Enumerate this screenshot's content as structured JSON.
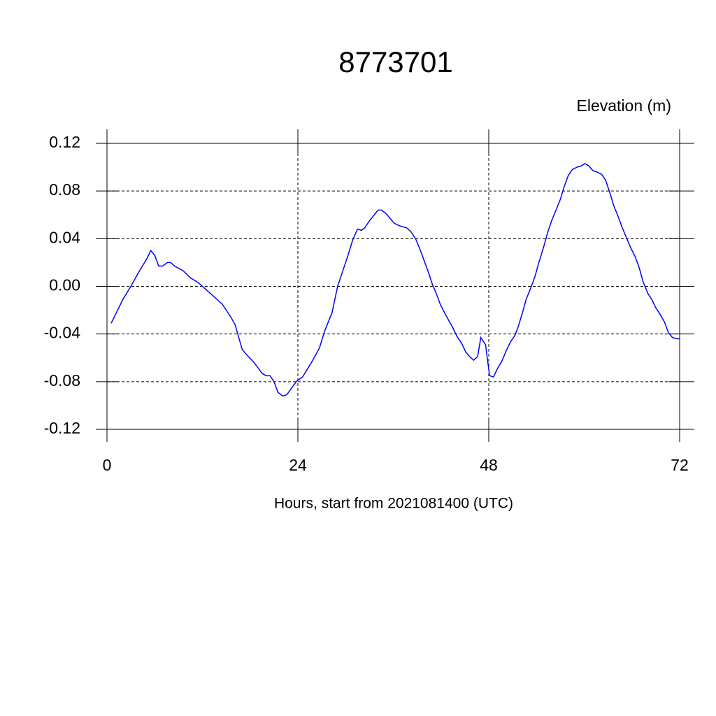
{
  "chart_data": {
    "type": "line",
    "title": "8773701",
    "ylabel": "Elevation (m)",
    "xlabel": "Hours, start from 2021081400 (UTC)",
    "xlim": [
      0,
      72
    ],
    "ylim": [
      -0.12,
      0.12
    ],
    "xticks": [
      0,
      24,
      48,
      72
    ],
    "yticks": [
      0.12,
      0.08,
      0.04,
      {
        "value": 0,
        "label": "0.00"
      },
      -0.04,
      -0.08,
      -0.12
    ],
    "grid": true,
    "series": [
      {
        "name": "Elevation",
        "color": "#0000ff",
        "x": [
          0.53,
          0.97,
          2.0,
          3.0,
          4.0,
          5.0,
          5.5,
          6.0,
          6.5,
          7.0,
          7.6,
          8.0,
          8.5,
          9.6,
          10.5,
          11.5,
          12.5,
          13.5,
          14.5,
          15.5,
          16.1,
          17.0,
          17.5,
          18.5,
          19.5,
          20.0,
          20.5,
          21.0,
          21.5,
          22.1,
          22.6,
          23.8,
          24.6,
          25.7,
          26.7,
          27.4,
          28.3,
          29.0,
          29.6,
          30.3,
          30.9,
          31.5,
          32.0,
          32.4,
          33.0,
          33.6,
          34.1,
          34.5,
          35.1,
          35.6,
          36.1,
          36.7,
          37.2,
          37.7,
          38.2,
          38.8,
          39.3,
          39.8,
          40.4,
          40.9,
          41.4,
          41.9,
          42.5,
          43.0,
          43.5,
          44.0,
          44.6,
          45.1,
          45.6,
          46.1,
          46.6,
          47.0,
          47.6,
          48.1,
          48.6,
          49.1,
          49.7,
          50.2,
          50.7,
          51.3,
          51.7,
          52.2,
          52.7,
          53.3,
          53.8,
          54.3,
          54.9,
          55.4,
          55.9,
          56.4,
          57.0,
          57.5,
          58.0,
          58.5,
          59.1,
          59.6,
          60.1,
          60.6,
          61.1,
          61.6,
          62.2,
          62.7,
          63.2,
          63.7,
          64.3,
          64.8,
          65.3,
          65.8,
          66.4,
          66.9,
          67.4,
          68.0,
          68.5,
          69.0,
          69.5,
          70.1,
          70.6,
          71.1,
          71.6,
          72.0
        ],
        "values": [
          -0.031,
          -0.025,
          -0.011,
          0.0,
          0.012,
          0.023,
          0.03,
          0.026,
          0.017,
          0.017,
          0.02,
          0.02,
          0.017,
          0.013,
          0.007,
          0.003,
          -0.003,
          -0.009,
          -0.015,
          -0.025,
          -0.032,
          -0.053,
          -0.057,
          -0.064,
          -0.073,
          -0.075,
          -0.075,
          -0.08,
          -0.089,
          -0.092,
          -0.091,
          -0.08,
          -0.076,
          -0.064,
          -0.052,
          -0.037,
          -0.022,
          0.0,
          0.012,
          0.026,
          0.039,
          0.048,
          0.047,
          0.049,
          0.055,
          0.06,
          0.064,
          0.064,
          0.061,
          0.057,
          0.053,
          0.051,
          0.05,
          0.049,
          0.046,
          0.04,
          0.032,
          0.023,
          0.012,
          0.002,
          -0.006,
          -0.015,
          -0.023,
          -0.029,
          -0.035,
          -0.042,
          -0.048,
          -0.055,
          -0.059,
          -0.062,
          -0.059,
          -0.043,
          -0.049,
          -0.075,
          -0.076,
          -0.069,
          -0.062,
          -0.054,
          -0.047,
          -0.041,
          -0.034,
          -0.023,
          -0.011,
          -0.001,
          0.008,
          0.02,
          0.033,
          0.045,
          0.055,
          0.063,
          0.073,
          0.084,
          0.093,
          0.098,
          0.1,
          0.101,
          0.103,
          0.101,
          0.097,
          0.096,
          0.094,
          0.089,
          0.079,
          0.068,
          0.058,
          0.049,
          0.041,
          0.033,
          0.025,
          0.016,
          0.004,
          -0.006,
          -0.011,
          -0.018,
          -0.023,
          -0.03,
          -0.039,
          -0.043,
          -0.044,
          -0.044
        ]
      }
    ]
  }
}
